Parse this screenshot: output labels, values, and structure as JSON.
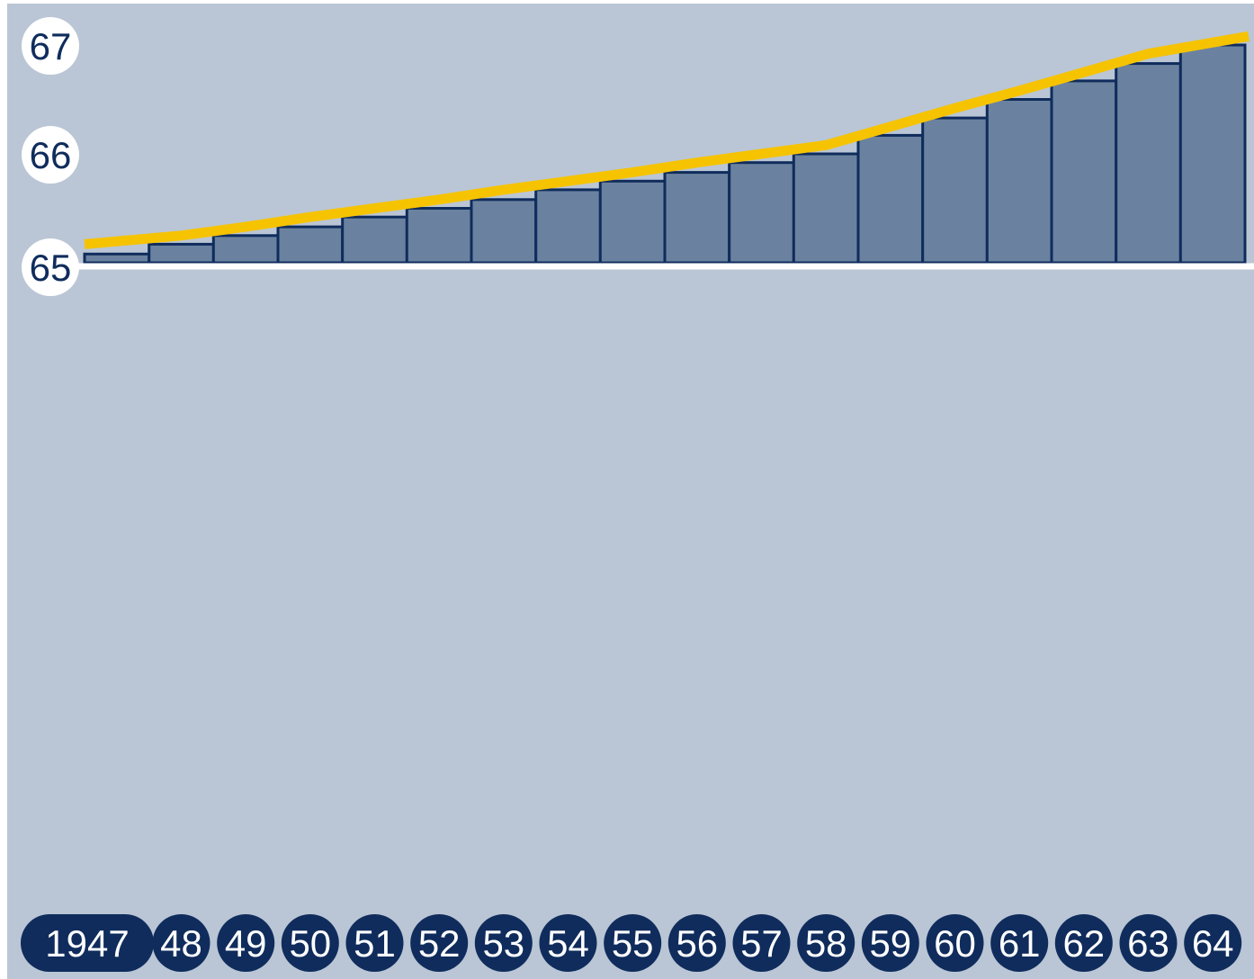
{
  "colors": {
    "background": "#bac6d5",
    "bar_fill": "#6a829f",
    "bar_stroke": "#0f2c5c",
    "line": "#f6c300",
    "baseline": "#ffffff",
    "label_circle": "#ffffff",
    "category_pill": "#0f2c5c"
  },
  "chart_data": {
    "type": "bar",
    "categories": [
      "1947",
      "48",
      "49",
      "50",
      "51",
      "52",
      "53",
      "54",
      "55",
      "56",
      "57",
      "58",
      "59",
      "60",
      "61",
      "62",
      "63",
      "64"
    ],
    "series": [
      {
        "type": "bar",
        "values": [
          65.08,
          65.17,
          65.25,
          65.33,
          65.42,
          65.5,
          65.58,
          65.67,
          65.75,
          65.83,
          65.92,
          66.0,
          66.17,
          66.33,
          66.5,
          66.67,
          66.83,
          67.0
        ]
      },
      {
        "type": "line",
        "values": [
          65.17,
          65.25,
          65.33,
          65.42,
          65.5,
          65.58,
          65.67,
          65.75,
          65.83,
          65.92,
          66.0,
          66.08,
          66.25,
          66.42,
          66.58,
          66.75,
          66.92,
          67.08
        ]
      }
    ],
    "y_ticks": [
      "65",
      "66",
      "67"
    ],
    "ylim": [
      65,
      67.25
    ],
    "title": "",
    "xlabel": "",
    "ylabel": "",
    "grid": false
  }
}
